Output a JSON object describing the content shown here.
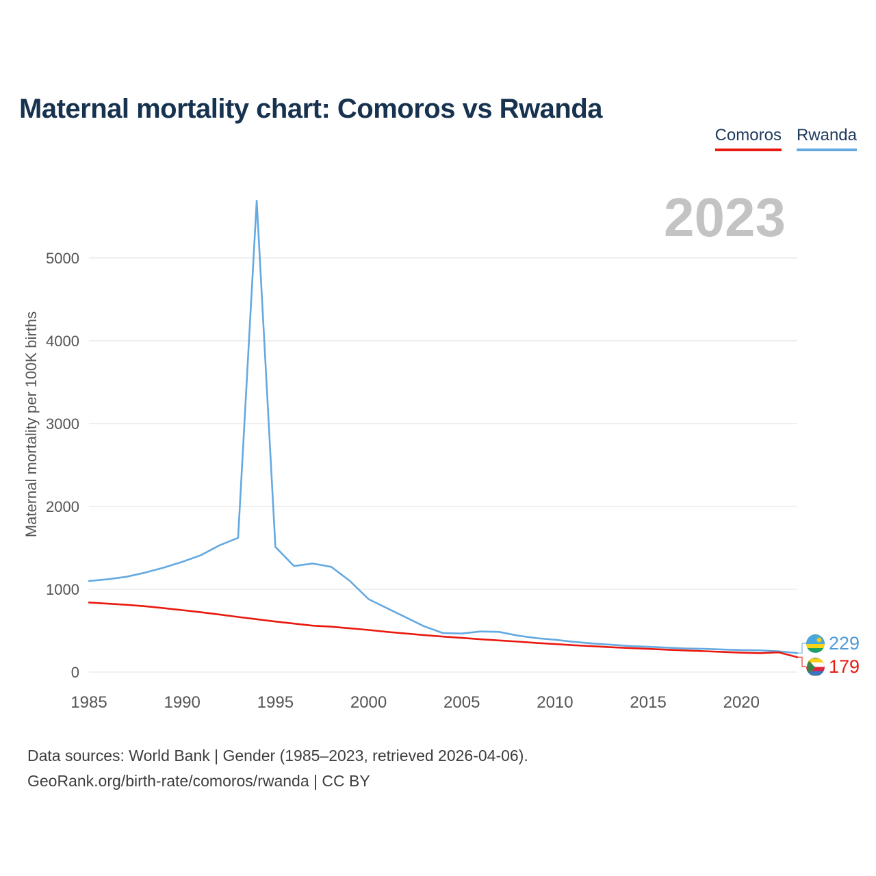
{
  "header": {
    "title": "Maternal mortality chart: Comoros vs Rwanda"
  },
  "legend": {
    "items": [
      {
        "label": "Comoros",
        "color": "#e8190f"
      },
      {
        "label": "Rwanda",
        "color": "#64a9e0"
      }
    ]
  },
  "watermark": "2023",
  "chart_data": {
    "type": "line",
    "title": "Maternal mortality chart: Comoros vs Rwanda",
    "xlabel": "",
    "ylabel": "Maternal mortality per 100K births",
    "x": [
      1985,
      1986,
      1987,
      1988,
      1989,
      1990,
      1991,
      1992,
      1993,
      1994,
      1995,
      1996,
      1997,
      1998,
      1999,
      2000,
      2001,
      2002,
      2003,
      2004,
      2005,
      2006,
      2007,
      2008,
      2009,
      2010,
      2011,
      2012,
      2013,
      2014,
      2015,
      2016,
      2017,
      2018,
      2019,
      2020,
      2021,
      2022,
      2023
    ],
    "series": [
      {
        "name": "Rwanda",
        "color": "#64a9e0",
        "values": [
          1100,
          1120,
          1150,
          1200,
          1260,
          1330,
          1410,
          1530,
          1620,
          5690,
          1510,
          1280,
          1310,
          1270,
          1100,
          880,
          770,
          660,
          550,
          470,
          465,
          490,
          485,
          440,
          410,
          390,
          365,
          345,
          330,
          315,
          305,
          295,
          285,
          280,
          272,
          265,
          262,
          250,
          229
        ]
      },
      {
        "name": "Comoros",
        "color": "#e8190f",
        "values": [
          840,
          825,
          812,
          795,
          772,
          748,
          722,
          695,
          665,
          638,
          610,
          585,
          560,
          548,
          528,
          508,
          485,
          465,
          445,
          428,
          412,
          396,
          382,
          368,
          352,
          338,
          324,
          312,
          300,
          290,
          280,
          270,
          261,
          252,
          243,
          234,
          228,
          238,
          179
        ]
      }
    ],
    "xticks": [
      1985,
      1990,
      1995,
      2000,
      2005,
      2010,
      2015,
      2020
    ],
    "yticks": [
      0,
      1000,
      2000,
      3000,
      4000,
      5000
    ],
    "xlim": [
      1985,
      2023
    ],
    "ylim": [
      0,
      5800
    ],
    "grid": "horizontal",
    "legend_position": "top-right",
    "end_labels": [
      {
        "series": "Rwanda",
        "value": 229,
        "color": "#4f9bd9",
        "flag": "rwanda-flag"
      },
      {
        "series": "Comoros",
        "value": 179,
        "color": "#e8190f",
        "flag": "comoros-flag"
      }
    ]
  },
  "footer": {
    "line1": "Data sources: World Bank | Gender (1985–2023, retrieved 2026-04-06).",
    "line2": "GeoRank.org/birth-rate/comoros/rwanda | CC BY"
  }
}
